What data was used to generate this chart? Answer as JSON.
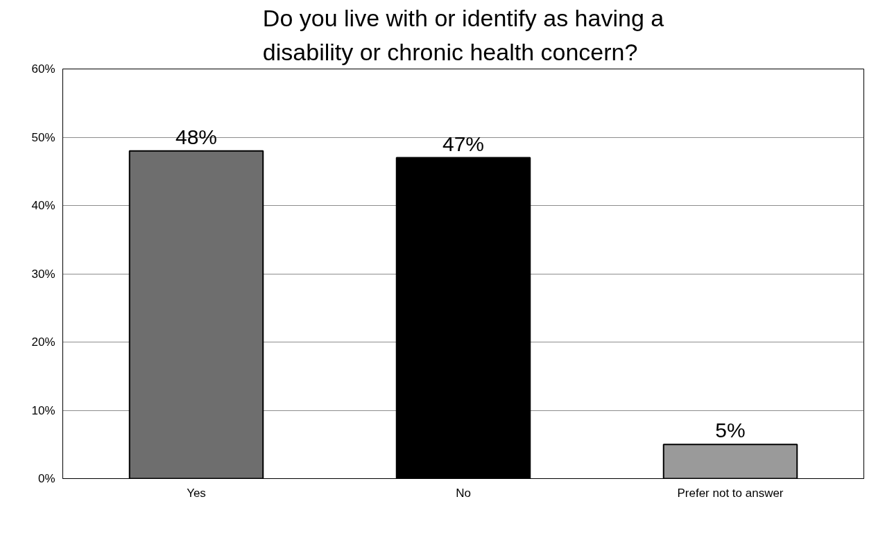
{
  "chart_data": {
    "type": "bar",
    "title": "Do you live with or identify as having a disability or chronic health concern?",
    "categories": [
      "Yes",
      "No",
      "Prefer not to answer"
    ],
    "values": [
      48,
      47,
      5
    ],
    "colors": [
      "#6e6e6e",
      "#000000",
      "#9a9a9a"
    ],
    "ylim": [
      0,
      60
    ],
    "yticks": [
      {
        "value": 0,
        "label": "0%"
      },
      {
        "value": 10,
        "label": "10%"
      },
      {
        "value": 20,
        "label": "20%"
      },
      {
        "value": 30,
        "label": "30%"
      },
      {
        "value": 40,
        "label": "40%"
      },
      {
        "value": 50,
        "label": "50%"
      },
      {
        "value": 60,
        "label": "60%"
      }
    ],
    "grid": "y",
    "value_labels": [
      "48%",
      "47%",
      "5%"
    ]
  }
}
